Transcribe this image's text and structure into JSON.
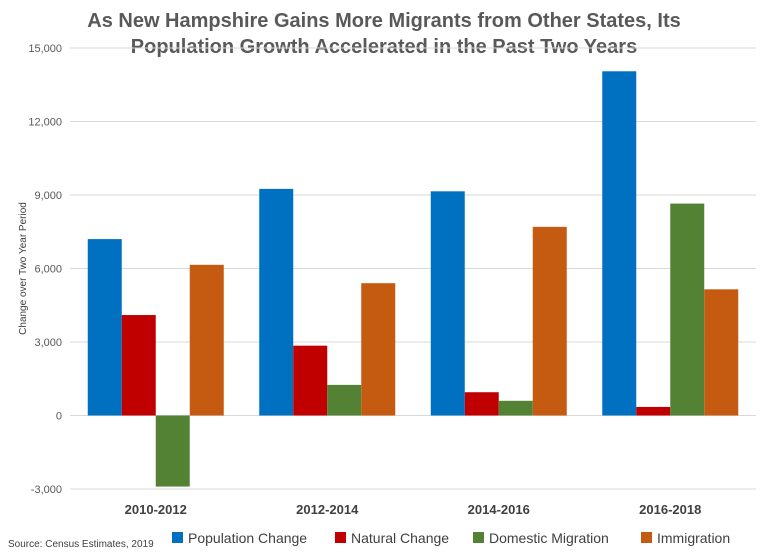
{
  "title_lines": [
    "As New Hampshire Gains More Migrants from Other States, Its",
    "Population Growth Accelerated in the Past Two Years"
  ],
  "source": "Source: Census Estimates, 2019",
  "chart_data": {
    "type": "bar",
    "title": "As New Hampshire Gains More Migrants from Other States, Its Population Growth Accelerated in the Past Two Years",
    "xlabel": "",
    "ylabel": "Change over Two Year Period",
    "ylim": [
      -3000,
      15000
    ],
    "yticks": [
      -3000,
      0,
      3000,
      6000,
      9000,
      12000,
      15000
    ],
    "ytick_labels": [
      "-3,000",
      "0",
      "3,000",
      "6,000",
      "9,000",
      "12,000",
      "15,000"
    ],
    "grid": true,
    "legend_position": "bottom",
    "categories": [
      "2010-2012",
      "2012-2014",
      "2014-2016",
      "2016-2018"
    ],
    "series": [
      {
        "name": "Population Change",
        "color": "#0070C0",
        "values": [
          7200,
          9250,
          9150,
          14050
        ]
      },
      {
        "name": "Natural Change",
        "color": "#C00000",
        "values": [
          4100,
          2850,
          950,
          350
        ]
      },
      {
        "name": "Domestic Migration",
        "color": "#548235",
        "values": [
          -2900,
          1250,
          600,
          8650
        ]
      },
      {
        "name": "Immigration",
        "color": "#C55A11",
        "values": [
          6150,
          5400,
          7700,
          5150
        ]
      }
    ]
  }
}
